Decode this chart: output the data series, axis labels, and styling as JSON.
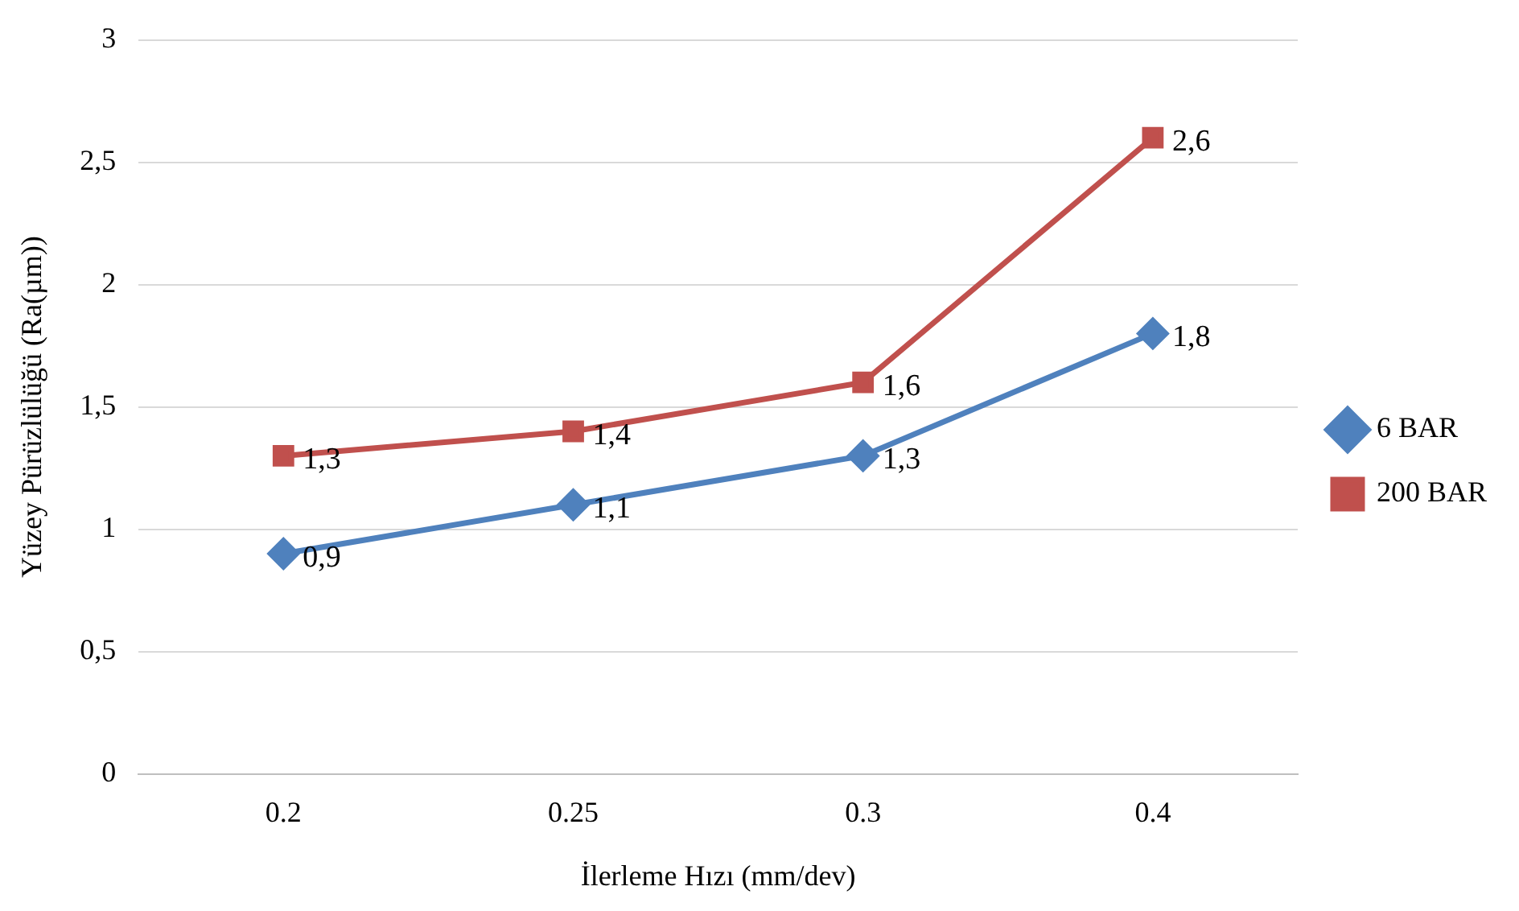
{
  "chart_data": {
    "type": "line",
    "xlabel": "İlerleme Hızı (mm/dev)",
    "ylabel": "Yüzey Pürüzlülüğü (Ra(µm))",
    "categories": [
      "0.2",
      "0.25",
      "0.3",
      "0.4"
    ],
    "series": [
      {
        "name": "6 BAR",
        "color": "#4f81bd",
        "marker": "diamond",
        "values": [
          0.9,
          1.1,
          1.3,
          1.8
        ],
        "value_labels": [
          "0,9",
          "1,1",
          "1,3",
          "1,8"
        ]
      },
      {
        "name": "200 BAR",
        "color": "#c0504d",
        "marker": "square",
        "values": [
          1.3,
          1.4,
          1.6,
          2.6
        ],
        "value_labels": [
          "1,3",
          "1,4",
          "1,6",
          "2,6"
        ]
      }
    ],
    "ylim": [
      0,
      3
    ],
    "yticks": [
      0,
      {
        "value": 0.5,
        "label": "0,5"
      },
      1,
      {
        "value": 1.5,
        "label": "1,5"
      },
      2,
      {
        "value": 2.5,
        "label": "2,5"
      },
      3
    ],
    "grid": "y",
    "legend": "right",
    "line_style": "solid"
  }
}
